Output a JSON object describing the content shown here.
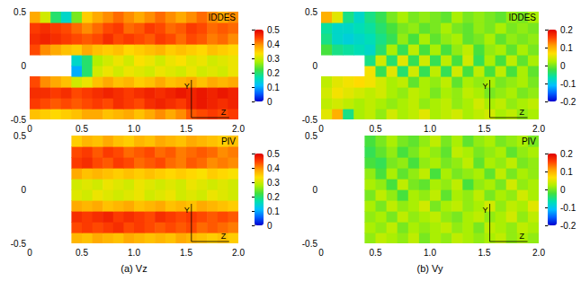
{
  "chart_data": [
    {
      "type": "heatmap",
      "title": "IDDES",
      "xlim": [
        0,
        2
      ],
      "xticks": [
        0,
        0.5,
        {
          "value": 1,
          "label": "1.0"
        },
        1.5,
        {
          "value": 2,
          "label": "2.0"
        }
      ],
      "ylim": [
        -0.5,
        0.5
      ],
      "yticks": [
        -0.5,
        0,
        0.5
      ],
      "colorbar_range": [
        0,
        0.5
      ],
      "colorbar_ticks": [
        0,
        0.1,
        0.2,
        0.3,
        0.4,
        0.5
      ],
      "annotations": [
        "Y",
        "Z"
      ],
      "x": [
        0.05,
        0.15,
        0.25,
        0.35,
        0.45,
        0.55,
        0.65,
        0.75,
        0.85,
        0.95,
        1.05,
        1.15,
        1.25,
        1.35,
        1.45,
        1.55,
        1.65,
        1.75,
        1.85,
        1.95
      ],
      "y": [
        -0.45,
        -0.35,
        -0.25,
        -0.15,
        -0.05,
        0.05,
        0.15,
        0.25,
        0.35,
        0.45
      ],
      "values": [
        [
          0.36,
          0.35,
          0.34,
          0.35,
          0.36,
          0.38,
          0.38,
          0.36,
          0.37,
          0.38,
          0.36,
          0.38,
          0.4,
          0.38,
          0.4,
          0.43,
          0.44,
          0.45,
          0.44,
          0.45
        ],
        [
          0.45,
          0.44,
          0.43,
          0.44,
          0.43,
          0.44,
          0.45,
          0.44,
          0.46,
          0.45,
          0.44,
          0.46,
          0.47,
          0.46,
          0.45,
          0.47,
          0.48,
          0.47,
          0.46,
          0.47
        ],
        [
          0.46,
          0.46,
          0.45,
          0.46,
          0.44,
          0.45,
          0.46,
          0.47,
          0.46,
          0.45,
          0.46,
          0.47,
          0.46,
          0.47,
          0.48,
          0.47,
          0.48,
          0.47,
          0.48,
          0.47
        ],
        [
          0.44,
          0.4,
          0.38,
          0.36,
          0.3,
          0.32,
          0.36,
          0.38,
          0.36,
          0.37,
          0.35,
          0.36,
          0.38,
          0.36,
          0.37,
          0.38,
          0.36,
          0.38,
          0.37,
          0.38
        ],
        [
          null,
          null,
          null,
          null,
          0.1,
          0.2,
          0.3,
          0.32,
          0.3,
          0.32,
          0.31,
          0.3,
          0.32,
          0.31,
          0.3,
          0.32,
          0.3,
          0.31,
          0.3,
          0.32
        ],
        [
          null,
          null,
          null,
          null,
          0.15,
          0.2,
          0.28,
          0.3,
          0.32,
          0.3,
          0.33,
          0.32,
          0.3,
          0.32,
          0.33,
          0.31,
          0.32,
          0.3,
          0.31,
          0.32
        ],
        [
          0.44,
          0.4,
          0.38,
          0.36,
          0.35,
          0.38,
          0.36,
          0.35,
          0.36,
          0.34,
          0.35,
          0.36,
          0.37,
          0.35,
          0.36,
          0.35,
          0.34,
          0.36,
          0.35,
          0.34
        ],
        [
          0.46,
          0.47,
          0.46,
          0.45,
          0.44,
          0.43,
          0.44,
          0.46,
          0.44,
          0.45,
          0.44,
          0.43,
          0.45,
          0.44,
          0.42,
          0.44,
          0.43,
          0.41,
          0.42,
          0.4
        ],
        [
          0.45,
          0.46,
          0.45,
          0.44,
          0.42,
          0.4,
          0.42,
          0.44,
          0.45,
          0.42,
          0.43,
          0.45,
          0.44,
          0.42,
          0.43,
          0.45,
          0.44,
          0.42,
          0.43,
          0.42
        ],
        [
          0.38,
          0.3,
          0.2,
          0.15,
          0.25,
          0.35,
          0.38,
          0.4,
          0.42,
          0.4,
          0.38,
          0.4,
          0.42,
          0.4,
          0.38,
          0.4,
          0.42,
          0.4,
          0.38,
          0.4
        ]
      ]
    },
    {
      "type": "heatmap",
      "title": "IDDES",
      "xlim": [
        0,
        2
      ],
      "xticks": [
        0,
        0.5,
        {
          "value": 1,
          "label": "1.0"
        },
        1.5,
        {
          "value": 2,
          "label": "2.0"
        }
      ],
      "ylim": [
        -0.5,
        0.5
      ],
      "yticks": [
        -0.5,
        0,
        0.5
      ],
      "colorbar_range": [
        -0.2,
        0.2
      ],
      "colorbar_ticks": [
        -0.2,
        -0.1,
        0,
        0.1,
        0.2
      ],
      "annotations": [
        "Y",
        "Z"
      ],
      "x": [
        0.05,
        0.15,
        0.25,
        0.35,
        0.45,
        0.55,
        0.65,
        0.75,
        0.85,
        0.95,
        1.05,
        1.15,
        1.25,
        1.35,
        1.45,
        1.55,
        1.65,
        1.75,
        1.85,
        1.95
      ],
      "y": [
        -0.45,
        -0.35,
        -0.25,
        -0.15,
        -0.05,
        0.05,
        0.15,
        0.25,
        0.35,
        0.45
      ],
      "values": [
        [
          0.05,
          0.1,
          -0.05,
          0.02,
          0.03,
          0.01,
          0.04,
          0.02,
          0.03,
          0.05,
          0.02,
          0.03,
          0.04,
          0.02,
          0.03,
          0.04,
          0.02,
          0.03,
          0.01,
          0.02
        ],
        [
          0.03,
          0.04,
          0.03,
          0.02,
          0.03,
          0.02,
          0.01,
          0.02,
          0.03,
          0.01,
          0.02,
          0.03,
          0.01,
          0.02,
          0.04,
          0.02,
          0.03,
          0.01,
          0.02,
          0.03
        ],
        [
          0.04,
          0.06,
          0.05,
          0.04,
          0.03,
          0.04,
          0.02,
          0.01,
          0.03,
          0.02,
          0,
          0.02,
          0.01,
          0.03,
          0.02,
          0,
          0.01,
          0.02,
          0,
          0.01
        ],
        [
          0.03,
          0.05,
          0.06,
          0.07,
          0.06,
          0.04,
          0.02,
          0.03,
          -0.01,
          0.02,
          0.01,
          0.03,
          -0.01,
          0.02,
          0.01,
          0.02,
          0,
          0.01,
          0.02,
          0
        ],
        [
          null,
          null,
          null,
          null,
          0.06,
          -0.03,
          0.05,
          -0.04,
          0.04,
          -0.03,
          0.03,
          -0.03,
          0.04,
          -0.02,
          0.03,
          -0.02,
          0.03,
          -0.02,
          0.02,
          -0.01
        ],
        [
          null,
          null,
          null,
          null,
          -0.05,
          0.04,
          -0.04,
          0.05,
          -0.03,
          0.04,
          -0.03,
          0.03,
          -0.02,
          0.04,
          -0.03,
          0.02,
          -0.02,
          0.03,
          -0.01,
          0.02
        ],
        [
          -0.02,
          -0.05,
          -0.06,
          -0.07,
          -0.08,
          -0.04,
          0.02,
          -0.03,
          0.03,
          -0.02,
          0.02,
          -0.02,
          0.01,
          0.03,
          -0.02,
          0.01,
          0.02,
          -0.01,
          0.02,
          0
        ],
        [
          -0.05,
          -0.08,
          -0.09,
          -0.08,
          -0.07,
          -0.05,
          -0.03,
          0.01,
          -0.02,
          0.02,
          -0.01,
          0.01,
          0.02,
          -0.01,
          0,
          0.02,
          -0.01,
          0.01,
          0,
          0.01
        ],
        [
          -0.06,
          -0.08,
          -0.08,
          -0.07,
          -0.06,
          -0.04,
          -0.02,
          0,
          0.01,
          -0.01,
          0,
          0.02,
          0,
          -0.01,
          0.01,
          0,
          0.02,
          0,
          0.01,
          0
        ],
        [
          0.1,
          0.05,
          -0.05,
          -0.08,
          -0.05,
          -0.03,
          0,
          0.02,
          0,
          0.01,
          0,
          -0.01,
          0.02,
          0,
          0.01,
          0,
          -0.01,
          0.01,
          0,
          0.02
        ]
      ]
    },
    {
      "type": "heatmap",
      "title": "PIV",
      "caption": "(a) Vz",
      "xlim": [
        0,
        2
      ],
      "xticks": [
        0,
        0.5,
        {
          "value": 1,
          "label": "1.0"
        },
        1.5,
        {
          "value": 2,
          "label": "2.0"
        }
      ],
      "ylim": [
        -0.5,
        0.5
      ],
      "yticks": [
        -0.5,
        0,
        0.5
      ],
      "colorbar_range": [
        0,
        0.5
      ],
      "colorbar_ticks": [
        0,
        0.1,
        0.2,
        0.3,
        0.4,
        0.5
      ],
      "annotations": [
        "Y",
        "Z"
      ],
      "x": [
        0.45,
        0.55,
        0.65,
        0.75,
        0.85,
        0.95,
        1.05,
        1.15,
        1.25,
        1.35,
        1.45,
        1.55,
        1.65,
        1.75,
        1.85,
        1.95
      ],
      "y": [
        -0.45,
        -0.35,
        -0.25,
        -0.15,
        -0.05,
        0.05,
        0.15,
        0.25,
        0.35,
        0.45
      ],
      "values": [
        [
          0.37,
          0.36,
          0.38,
          0.37,
          0.36,
          0.38,
          0.37,
          0.36,
          0.37,
          0.36,
          0.38,
          0.37,
          0.36,
          0.35,
          0.36,
          0.35
        ],
        [
          0.44,
          0.45,
          0.44,
          0.45,
          0.46,
          0.44,
          0.45,
          0.44,
          0.43,
          0.44,
          0.43,
          0.44,
          0.42,
          0.43,
          0.42,
          0.41
        ],
        [
          0.46,
          0.45,
          0.46,
          0.47,
          0.45,
          0.46,
          0.45,
          0.44,
          0.46,
          0.45,
          0.44,
          0.45,
          0.44,
          0.43,
          0.44,
          0.43
        ],
        [
          0.38,
          0.37,
          0.38,
          0.36,
          0.37,
          0.38,
          0.36,
          0.37,
          0.38,
          0.36,
          0.37,
          0.36,
          0.38,
          0.37,
          0.36,
          0.35
        ],
        [
          0.31,
          0.3,
          0.32,
          0.31,
          0.3,
          0.31,
          0.32,
          0.3,
          0.31,
          0.32,
          0.3,
          0.31,
          0.3,
          0.32,
          0.31,
          0.3
        ],
        [
          0.3,
          0.31,
          0.3,
          0.32,
          0.31,
          0.3,
          0.32,
          0.31,
          0.3,
          0.31,
          0.3,
          0.32,
          0.31,
          0.3,
          0.31,
          0.3
        ],
        [
          0.38,
          0.36,
          0.37,
          0.36,
          0.35,
          0.36,
          0.35,
          0.36,
          0.35,
          0.34,
          0.35,
          0.34,
          0.33,
          0.35,
          0.34,
          0.33
        ],
        [
          0.45,
          0.46,
          0.44,
          0.43,
          0.45,
          0.44,
          0.42,
          0.43,
          0.44,
          0.42,
          0.41,
          0.43,
          0.42,
          0.4,
          0.41,
          0.4
        ],
        [
          0.44,
          0.45,
          0.43,
          0.45,
          0.44,
          0.42,
          0.43,
          0.44,
          0.42,
          0.43,
          0.41,
          0.42,
          0.43,
          0.42,
          0.4,
          0.41
        ],
        [
          0.35,
          0.37,
          0.36,
          0.38,
          0.36,
          0.35,
          0.37,
          0.36,
          0.38,
          0.37,
          0.36,
          0.38,
          0.37,
          0.36,
          0.35,
          0.36
        ]
      ]
    },
    {
      "type": "heatmap",
      "title": "PIV",
      "caption": "(b) Vy",
      "xlim": [
        0,
        2
      ],
      "xticks": [
        0,
        0.5,
        {
          "value": 1,
          "label": "1.0"
        },
        1.5,
        {
          "value": 2,
          "label": "2.0"
        }
      ],
      "ylim": [
        -0.5,
        0.5
      ],
      "yticks": [
        -0.5,
        0,
        0.5
      ],
      "colorbar_range": [
        -0.2,
        0.2
      ],
      "colorbar_ticks": [
        -0.2,
        -0.1,
        0,
        0.1,
        0.2
      ],
      "annotations": [
        "Y",
        "Z"
      ],
      "x": [
        0.45,
        0.55,
        0.65,
        0.75,
        0.85,
        0.95,
        1.05,
        1.15,
        1.25,
        1.35,
        1.45,
        1.55,
        1.65,
        1.75,
        1.85,
        1.95
      ],
      "y": [
        -0.45,
        -0.35,
        -0.25,
        -0.15,
        -0.05,
        0.05,
        0.15,
        0.25,
        0.35,
        0.45
      ],
      "values": [
        [
          0.01,
          0.03,
          0.02,
          0.01,
          0.03,
          0,
          0.02,
          0.01,
          0.03,
          0.02,
          0.01,
          0.02,
          0.03,
          0.01,
          0.02,
          0.01
        ],
        [
          0.02,
          0.01,
          0.03,
          0,
          0.02,
          0.01,
          0.02,
          0.03,
          0.01,
          0.02,
          0,
          0.03,
          0.02,
          0.01,
          0.03,
          0.02
        ],
        [
          0.01,
          0.02,
          0,
          0.03,
          0.01,
          0.02,
          0.03,
          0.01,
          0,
          0.02,
          0.03,
          0.01,
          0.02,
          0.04,
          0.01,
          0.03
        ],
        [
          0.02,
          0,
          0.03,
          0.01,
          0.02,
          0.04,
          0,
          0.02,
          0.03,
          0.01,
          0.02,
          0.04,
          0.01,
          0.03,
          0.02,
          0.05
        ],
        [
          0,
          0.03,
          0.01,
          -0.02,
          0.02,
          0.01,
          0.03,
          -0.01,
          0.02,
          0.01,
          0.03,
          0,
          0.02,
          0.01,
          0.04,
          0.02
        ],
        [
          0.02,
          0.01,
          -0.02,
          0.03,
          0,
          -0.01,
          0.02,
          0.01,
          0.03,
          -0.02,
          0.01,
          0.02,
          0,
          0.04,
          0.01,
          0.02
        ],
        [
          0.01,
          -0.02,
          0.02,
          -0.01,
          0.01,
          0.03,
          -0.02,
          0.02,
          0,
          0.01,
          0.02,
          -0.01,
          0.03,
          0,
          0.02,
          0.01
        ],
        [
          -0.02,
          -0.03,
          0,
          0.01,
          -0.02,
          0.01,
          0.02,
          0,
          0.01,
          0.03,
          -0.01,
          0.02,
          0.01,
          0.03,
          0,
          0.01
        ],
        [
          -0.03,
          -0.01,
          0.01,
          -0.02,
          0,
          0.02,
          0.01,
          -0.01,
          0.03,
          0.02,
          0,
          0.01,
          0.02,
          -0.01,
          0.01,
          0.02
        ],
        [
          -0.02,
          0,
          0.02,
          0,
          -0.01,
          0.01,
          0.03,
          0,
          0.02,
          -0.01,
          0.01,
          0.02,
          0,
          0.01,
          0.02,
          0
        ]
      ]
    }
  ]
}
